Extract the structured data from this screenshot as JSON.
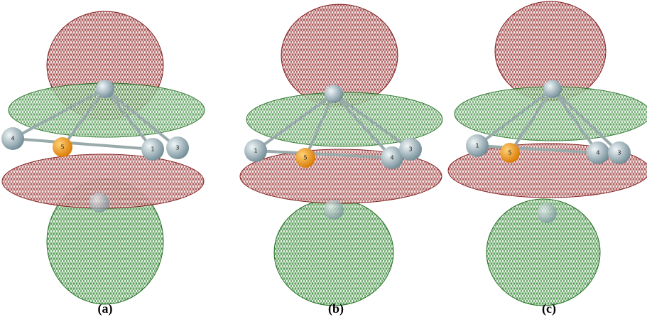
{
  "panels": [
    {
      "label": "(a)",
      "atoms": [
        "4",
        "5",
        "1",
        "3"
      ]
    },
    {
      "label": "(b)",
      "atoms": [
        "1",
        "5",
        "4",
        "3"
      ]
    },
    {
      "label": "(c)",
      "atoms": [
        "1",
        "5",
        "4",
        "3"
      ]
    }
  ]
}
